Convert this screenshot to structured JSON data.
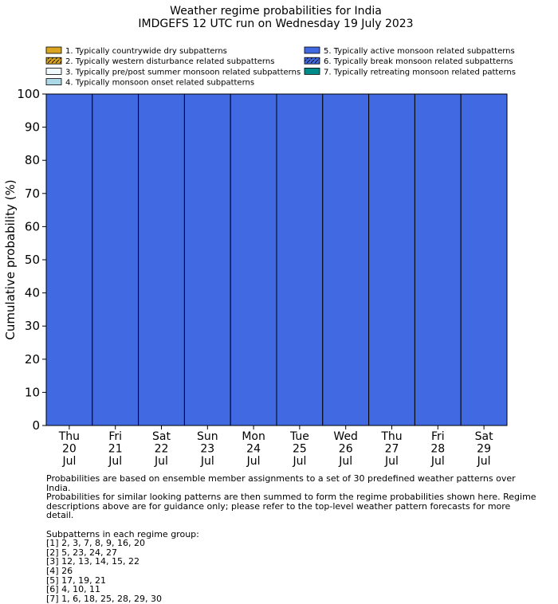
{
  "chart_data": {
    "type": "bar",
    "stacked": true,
    "title": "Weather regime probabilities for India",
    "subtitle": "IMDGEFS 12 UTC run on Wednesday 19 July 2023",
    "ylabel": "Cumulative probability (%)",
    "xlabel": "",
    "ylim": [
      0,
      100
    ],
    "yticks": [
      0,
      10,
      20,
      30,
      40,
      50,
      60,
      70,
      80,
      90,
      100
    ],
    "grid": false,
    "legend_position": "top",
    "categories": [
      [
        "Thu",
        "20",
        "Jul"
      ],
      [
        "Fri",
        "21",
        "Jul"
      ],
      [
        "Sat",
        "22",
        "Jul"
      ],
      [
        "Sun",
        "23",
        "Jul"
      ],
      [
        "Mon",
        "24",
        "Jul"
      ],
      [
        "Tue",
        "25",
        "Jul"
      ],
      [
        "Wed",
        "26",
        "Jul"
      ],
      [
        "Thu",
        "27",
        "Jul"
      ],
      [
        "Fri",
        "28",
        "Jul"
      ],
      [
        "Sat",
        "29",
        "Jul"
      ]
    ],
    "series": [
      {
        "name": "1. Typically countrywide dry subpatterns",
        "color": "#daa520",
        "hatch": false,
        "values": [
          0,
          0,
          0,
          0,
          0,
          0,
          0,
          0,
          0,
          0
        ]
      },
      {
        "name": "2. Typically western disturbance related subpatterns",
        "color": "#daa520",
        "hatch": true,
        "values": [
          0,
          0,
          0,
          0,
          0,
          0,
          0,
          0,
          0,
          0
        ]
      },
      {
        "name": "3. Typically pre/post summer monsoon related subpatterns",
        "color": "#f0fbff",
        "hatch": false,
        "values": [
          0,
          0,
          0,
          0,
          0,
          0,
          0,
          0,
          0,
          0
        ]
      },
      {
        "name": "4. Typically monsoon onset related subpatterns",
        "color": "#add8e6",
        "hatch": false,
        "values": [
          0,
          0,
          0,
          0,
          0,
          0,
          0,
          0,
          0,
          0
        ]
      },
      {
        "name": "5. Typically active monsoon related subpatterns",
        "color": "#4169e1",
        "hatch": false,
        "values": [
          100,
          100,
          100,
          100,
          100,
          100,
          100,
          100,
          100,
          100
        ]
      },
      {
        "name": "6. Typically break monsoon related subpatterns",
        "color": "#4169e1",
        "hatch": true,
        "values": [
          0,
          0,
          0,
          0,
          0,
          0,
          0,
          0,
          0,
          0
        ]
      },
      {
        "name": "7. Typically retreating monsoon related patterns",
        "color": "#008b8b",
        "hatch": false,
        "values": [
          0,
          0,
          0,
          0,
          0,
          0,
          0,
          0,
          0,
          0
        ]
      }
    ]
  },
  "notes": {
    "lines": [
      "Probabilities are based on ensemble member assignments to a set of 30 predefined weather patterns over India.",
      "Probabilities for similar looking patterns are then summed to form the regime probabilities shown here. Regime",
      "descriptions above are for guidance only; please refer to the top-level weather pattern forecasts for more detail."
    ],
    "subpatterns_heading": "Subpatterns in each regime group:",
    "subpatterns": [
      "[1] 2, 3, 7, 8, 9, 16, 20",
      "[2] 5, 23, 24, 27",
      "[3] 12, 13, 14, 15, 22",
      "[4] 26",
      "[5] 17, 19, 21",
      "[6] 4, 10, 11",
      "[7] 1, 6, 18, 25, 28, 29, 30"
    ]
  }
}
